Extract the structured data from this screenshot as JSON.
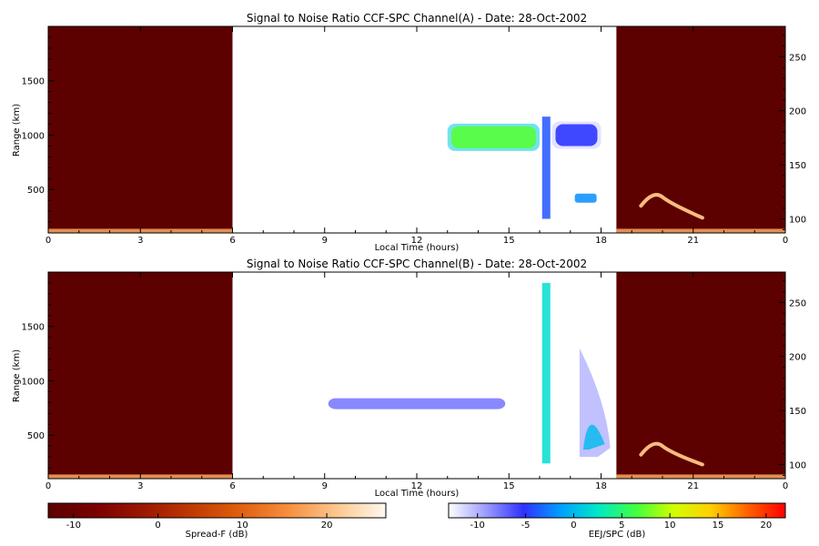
{
  "chart_data": [
    {
      "type": "heatmap",
      "title": "Signal to Noise Ratio CCF-SPC Channel(A) - Date: 28-Oct-2002",
      "xlabel": "Local Time (hours)",
      "ylabel": "Range (km)",
      "xlim": [
        0,
        24
      ],
      "ylim": [
        100,
        2000
      ],
      "right_ylim": [
        87,
        278
      ],
      "xticks": [
        0,
        3,
        6,
        9,
        12,
        15,
        18,
        21
      ],
      "xtick_labels": [
        "0",
        "3",
        "6",
        "9",
        "12",
        "15",
        "18",
        "21",
        "0"
      ],
      "yticks": [
        500,
        1000,
        1500
      ],
      "right_yticks": [
        100,
        150,
        200,
        250
      ],
      "nighttime_windows": [
        [
          0,
          6
        ],
        [
          18.5,
          24
        ]
      ],
      "features": [
        {
          "kind": "nighttime-background",
          "colormap": "spread_f",
          "value_db": -13
        },
        {
          "kind": "bottom-layer",
          "t_start": 0,
          "t_end": 6,
          "range_km": 130,
          "value_db": 18
        },
        {
          "kind": "bottom-layer",
          "t_start": 18.5,
          "t_end": 24,
          "range_km": 130,
          "value_db": 18
        },
        {
          "kind": "arc",
          "t_start": 19.3,
          "t_end": 21.3,
          "range_start_km": 350,
          "range_peak_km": 430,
          "range_end_km": 240,
          "value_db": 20
        },
        {
          "kind": "band",
          "t_start": 13.0,
          "t_end": 16.0,
          "range_center_km": 980,
          "value_db": 7
        },
        {
          "kind": "band",
          "t_start": 16.4,
          "t_end": 18.0,
          "range_center_km": 1000,
          "value_db": -5
        },
        {
          "kind": "column",
          "t": 16.2,
          "range_start_km": 230,
          "range_end_km": 1170,
          "value_db": -4
        },
        {
          "kind": "blob",
          "t": 17.5,
          "range_km": 420,
          "value_db": -2
        }
      ]
    },
    {
      "type": "heatmap",
      "title": "Signal to Noise Ratio CCF-SPC Channel(B) - Date: 28-Oct-2002",
      "xlabel": "Local Time (hours)",
      "ylabel": "Range (km)",
      "xlim": [
        0,
        24
      ],
      "ylim": [
        100,
        2000
      ],
      "right_ylim": [
        87,
        278
      ],
      "xticks": [
        0,
        3,
        6,
        9,
        12,
        15,
        18,
        21
      ],
      "xtick_labels": [
        "0",
        "3",
        "6",
        "9",
        "12",
        "15",
        "18",
        "21",
        "0"
      ],
      "yticks": [
        500,
        1000,
        1500
      ],
      "right_yticks": [
        100,
        150,
        200,
        250
      ],
      "nighttime_windows": [
        [
          0,
          6
        ],
        [
          18.5,
          24
        ]
      ],
      "features": [
        {
          "kind": "nighttime-background",
          "colormap": "spread_f",
          "value_db": -13
        },
        {
          "kind": "bottom-layer",
          "t_start": 0,
          "t_end": 6,
          "range_km": 130,
          "value_db": 18
        },
        {
          "kind": "bottom-layer",
          "t_start": 18.5,
          "t_end": 24,
          "range_km": 130,
          "value_db": 18
        },
        {
          "kind": "arc",
          "t_start": 19.3,
          "t_end": 21.3,
          "range_start_km": 320,
          "range_peak_km": 400,
          "range_end_km": 230,
          "value_db": 20
        },
        {
          "kind": "band",
          "t_start": 9.0,
          "t_end": 15.0,
          "range_center_km": 790,
          "value_db": -8
        },
        {
          "kind": "column",
          "t": 16.2,
          "range_start_km": 240,
          "range_end_km": 1900,
          "value_db": 2
        },
        {
          "kind": "plume",
          "t_start": 17.3,
          "t_end": 18.3,
          "range_start_km": 300,
          "range_end_km": 1300,
          "value_db": 0
        }
      ]
    }
  ],
  "colorbars": [
    {
      "name": "Spread-F (dB)",
      "label": "Spread-F (dB)",
      "range": [
        -13,
        27
      ],
      "ticks": [
        -10,
        0,
        10,
        20
      ],
      "tick_labels": [
        "-10",
        "0",
        "10",
        "20"
      ],
      "colors": [
        "#5c0000",
        "#7a0000",
        "#9c1800",
        "#c03a00",
        "#e06010",
        "#f59040",
        "#fcc890",
        "#fff8f0"
      ]
    },
    {
      "name": "EEJ/SPC (dB)",
      "label": "EEJ/SPC (dB)",
      "range": [
        -13,
        22
      ],
      "ticks": [
        -10,
        -5,
        0,
        5,
        10,
        15,
        20
      ],
      "tick_labels": [
        "-10",
        "-5",
        "0",
        "5",
        "10",
        "15",
        "20"
      ],
      "colors": [
        "#ffffff",
        "#9b9bff",
        "#3030ff",
        "#00a0ff",
        "#00e8c8",
        "#40ff40",
        "#d0ff00",
        "#ffd000",
        "#ff6000",
        "#ff0000"
      ]
    }
  ]
}
